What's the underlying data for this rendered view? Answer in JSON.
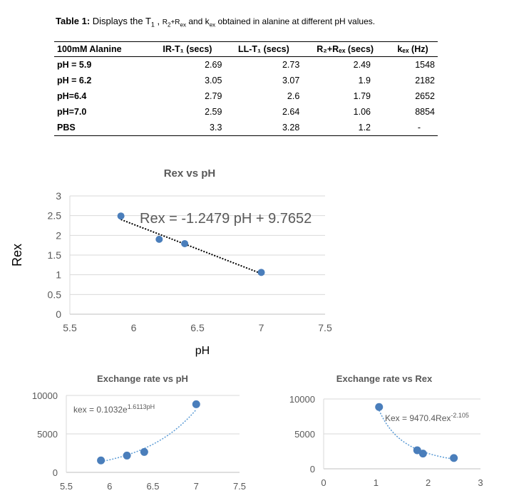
{
  "caption": {
    "label": "Table 1:",
    "text_a": " Displays the T",
    "sub1": "1",
    "text_b": " , ",
    "small_a": "R",
    "small_a_sub": "2",
    "small_b": "+R",
    "small_b_sub": "ex",
    "text_c": " and k",
    "text_c_sub": "ex",
    "text_d": " obtained in alanine at different pH values."
  },
  "table": {
    "headers": [
      "100mM Alanine",
      "IR-T₁ (secs)",
      "LL-T₁ (secs)",
      "R₂+Rₑₓ (secs)",
      "kₑₓ (Hz)"
    ],
    "rows": [
      [
        "pH = 5.9",
        "2.69",
        "2.73",
        "2.49",
        "1548"
      ],
      [
        "pH = 6.2",
        "3.05",
        "3.07",
        "1.9",
        "2182"
      ],
      [
        "pH=6.4",
        "2.79",
        "2.6",
        "1.79",
        "2652"
      ],
      [
        "pH=7.0",
        "2.59",
        "2.64",
        "1.06",
        "8854"
      ],
      [
        "PBS",
        "3.3",
        "3.28",
        "1.2",
        "-"
      ]
    ]
  },
  "chart_data": [
    {
      "type": "scatter",
      "title": "Rex vs pH",
      "xlabel": "pH",
      "ylabel": "Rex",
      "xlim": [
        5.5,
        7.5
      ],
      "ylim": [
        0,
        3
      ],
      "xticks": [
        "5.5",
        "6",
        "6.5",
        "7",
        "7.5"
      ],
      "yticks": [
        "0",
        "0.5",
        "1",
        "1.5",
        "2",
        "2.5",
        "3"
      ],
      "grid": true,
      "series": [
        {
          "x": [
            5.9,
            6.2,
            6.4,
            7.0
          ],
          "y": [
            2.49,
            1.9,
            1.79,
            1.06
          ]
        }
      ],
      "trendline": {
        "kind": "linear",
        "slope": -1.2479,
        "intercept": 9.7652,
        "x_from": 5.9,
        "x_to": 7.0
      },
      "annotation": "Rex = -1.2479 pH + 9.7652",
      "marker_color": "#4a7ebb",
      "trend_color": "#000000"
    },
    {
      "type": "scatter",
      "title": "Exchange rate vs pH",
      "xlabel": "",
      "ylabel": "",
      "xlim": [
        5.5,
        7.5
      ],
      "ylim": [
        0,
        10000
      ],
      "xticks": [
        "5.5",
        "6",
        "6.5",
        "7",
        "7.5"
      ],
      "yticks": [
        "0",
        "5000",
        "10000"
      ],
      "grid": true,
      "series": [
        {
          "x": [
            5.9,
            6.2,
            6.4,
            7.0
          ],
          "y": [
            1548,
            2182,
            2652,
            8854
          ]
        }
      ],
      "trendline": {
        "kind": "exponential",
        "a": 0.1032,
        "b": 1.6113,
        "x_from": 5.9,
        "x_to": 7.0
      },
      "annotation_base": "kex = 0.1032e",
      "annotation_sup": "1.6113pH",
      "marker_color": "#4a7ebb",
      "trend_color": "#5b9bd5"
    },
    {
      "type": "scatter",
      "title": "Exchange rate vs Rex",
      "xlabel": "",
      "ylabel": "",
      "xlim": [
        0,
        3
      ],
      "ylim": [
        0,
        10000
      ],
      "xticks": [
        "0",
        "1",
        "2",
        "3"
      ],
      "yticks": [
        "0",
        "5000",
        "10000"
      ],
      "grid": true,
      "series": [
        {
          "x": [
            1.06,
            1.79,
            1.9,
            2.49
          ],
          "y": [
            8854,
            2652,
            2182,
            1548
          ]
        }
      ],
      "trendline": {
        "kind": "power",
        "a": 9470.4,
        "b": -2.105,
        "x_from": 1.06,
        "x_to": 2.49
      },
      "annotation_base": "Kex = 9470.4Rex",
      "annotation_sup": "-2.105",
      "marker_color": "#4a7ebb",
      "trend_color": "#5b9bd5"
    }
  ]
}
